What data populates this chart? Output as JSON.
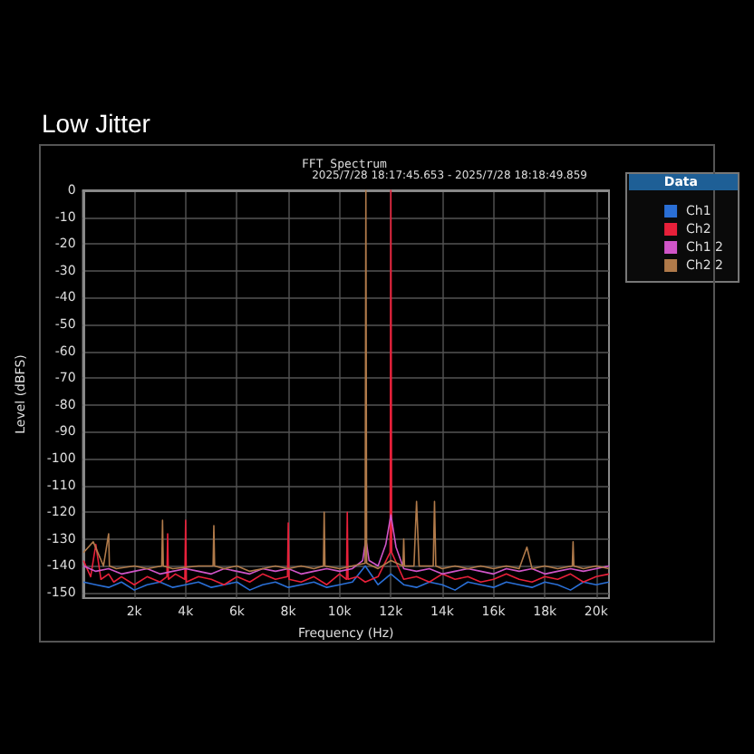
{
  "chart_data": {
    "type": "line",
    "title": "Low Jitter",
    "subtitle": "FFT Spectrum",
    "annotations": [
      "2025/7/28 18:17:45.653 - 2025/7/28 18:18:49.859"
    ],
    "xlabel": "Frequency (Hz)",
    "ylabel": "Level (dBFS)",
    "legend_title": "Data",
    "legend": "top right",
    "grid": true,
    "marker": "none",
    "line_style": "solid",
    "xlim": [
      0,
      20500
    ],
    "ylim": [
      -152,
      0
    ],
    "xticks": [
      {
        "value": 2000,
        "label": "2k"
      },
      {
        "value": 4000,
        "label": "4k"
      },
      {
        "value": 6000,
        "label": "6k"
      },
      {
        "value": 8000,
        "label": "8k"
      },
      {
        "value": 10000,
        "label": "10k"
      },
      {
        "value": 12000,
        "label": "12k"
      },
      {
        "value": 14000,
        "label": "14k"
      },
      {
        "value": 16000,
        "label": "16k"
      },
      {
        "value": 18000,
        "label": "18k"
      },
      {
        "value": 20000,
        "label": "20k"
      }
    ],
    "yticks": [
      0,
      -10,
      -20,
      -30,
      -40,
      -50,
      -60,
      -70,
      -80,
      -90,
      -100,
      -110,
      -120,
      -130,
      -140,
      -150
    ],
    "series": [
      {
        "name": "Ch1",
        "color": "#2a6fd6",
        "x": [
          20,
          500,
          1000,
          1500,
          2000,
          2500,
          3000,
          3500,
          4000,
          4500,
          5000,
          5500,
          6000,
          6500,
          7000,
          7500,
          8000,
          8500,
          9000,
          9500,
          10000,
          10500,
          11000,
          11500,
          12000,
          12500,
          13000,
          13500,
          14000,
          14500,
          15000,
          15500,
          16000,
          16500,
          17000,
          17500,
          18000,
          18500,
          19000,
          19500,
          20000,
          20500
        ],
        "values": [
          -146,
          -147,
          -148,
          -146,
          -149,
          -147,
          -146,
          -148,
          -147,
          -146,
          -148,
          -147,
          -146,
          -149,
          -147,
          -146,
          -148,
          -147,
          -146,
          -148,
          -147,
          -146,
          -140,
          -147,
          -143,
          -147,
          -148,
          -146,
          -147,
          -149,
          -146,
          -147,
          -148,
          -146,
          -147,
          -148,
          -146,
          -147,
          -149,
          -146,
          -147,
          -146
        ]
      },
      {
        "name": "Ch2",
        "color": "#e8203a",
        "x": [
          20,
          300,
          500,
          700,
          1000,
          1200,
          1500,
          2000,
          2500,
          3000,
          3270,
          3300,
          3330,
          3600,
          3970,
          4000,
          4030,
          4500,
          5000,
          5500,
          6000,
          6500,
          7000,
          7500,
          7970,
          8000,
          8030,
          8500,
          9000,
          9500,
          10000,
          10270,
          10300,
          10330,
          10700,
          11000,
          11500,
          11970,
          12000,
          12030,
          12500,
          13000,
          13500,
          14000,
          14500,
          15000,
          15500,
          16000,
          16500,
          17000,
          17500,
          18000,
          18500,
          19000,
          19500,
          20000,
          20500
        ],
        "values": [
          -138,
          -144,
          -132,
          -145,
          -143,
          -146,
          -144,
          -147,
          -144,
          -146,
          -144,
          -128,
          -145,
          -143,
          -145,
          -123,
          -146,
          -144,
          -145,
          -147,
          -144,
          -146,
          -143,
          -145,
          -144,
          -124,
          -145,
          -146,
          -144,
          -147,
          -143,
          -145,
          -120,
          -145,
          -144,
          -146,
          -144,
          -135,
          0,
          -135,
          -145,
          -144,
          -146,
          -143,
          -145,
          -144,
          -146,
          -145,
          -143,
          -145,
          -146,
          -144,
          -145,
          -143,
          -146,
          -144,
          -143
        ]
      },
      {
        "name": "Ch1 2",
        "color": "#d055c8",
        "x": [
          20,
          500,
          1000,
          1500,
          2000,
          2500,
          3000,
          3500,
          4000,
          4500,
          5000,
          5500,
          6000,
          6500,
          7000,
          7500,
          8000,
          8500,
          9000,
          9500,
          10000,
          10500,
          10900,
          11025,
          11150,
          11500,
          11800,
          12000,
          12200,
          12500,
          13000,
          13500,
          14000,
          14500,
          15000,
          15500,
          16000,
          16500,
          17000,
          17500,
          18000,
          18500,
          19000,
          19500,
          20000,
          20500
        ],
        "values": [
          -140,
          -142,
          -141,
          -143,
          -142,
          -141,
          -143,
          -142,
          -141,
          -142,
          -143,
          -141,
          -142,
          -143,
          -141,
          -142,
          -141,
          -143,
          -142,
          -141,
          -142,
          -141,
          -138,
          -130,
          -138,
          -140,
          -132,
          -121,
          -133,
          -141,
          -142,
          -141,
          -143,
          -142,
          -141,
          -142,
          -143,
          -141,
          -142,
          -141,
          -143,
          -142,
          -141,
          -142,
          -141,
          -140
        ]
      },
      {
        "name": "Ch2 2",
        "color": "#b07a4a",
        "x": [
          20,
          400,
          800,
          1000,
          1030,
          1300,
          2000,
          2500,
          3070,
          3100,
          3130,
          3500,
          4500,
          5070,
          5100,
          5130,
          5500,
          6000,
          6500,
          7000,
          7500,
          8000,
          8500,
          9000,
          9370,
          9400,
          9430,
          10000,
          10500,
          10995,
          11025,
          11055,
          11500,
          12000,
          12470,
          12500,
          12530,
          12900,
          13000,
          13100,
          13650,
          13700,
          13750,
          14000,
          14500,
          15000,
          15500,
          16000,
          16500,
          17000,
          17300,
          17500,
          18000,
          18500,
          19070,
          19100,
          19130,
          19500,
          20000,
          20500
        ],
        "values": [
          -135,
          -131,
          -140,
          -128,
          -140,
          -141,
          -140,
          -141,
          -140,
          -123,
          -140,
          -141,
          -140,
          -140,
          -125,
          -140,
          -141,
          -140,
          -142,
          -141,
          -140,
          -141,
          -140,
          -141,
          -140,
          -120,
          -140,
          -141,
          -140,
          -139,
          0,
          -139,
          -141,
          -138,
          -140,
          -130,
          -140,
          -140,
          -116,
          -140,
          -140,
          -116,
          -140,
          -141,
          -140,
          -141,
          -140,
          -141,
          -140,
          -141,
          -133,
          -141,
          -140,
          -141,
          -140,
          -131,
          -140,
          -141,
          -140,
          -141
        ]
      }
    ]
  }
}
